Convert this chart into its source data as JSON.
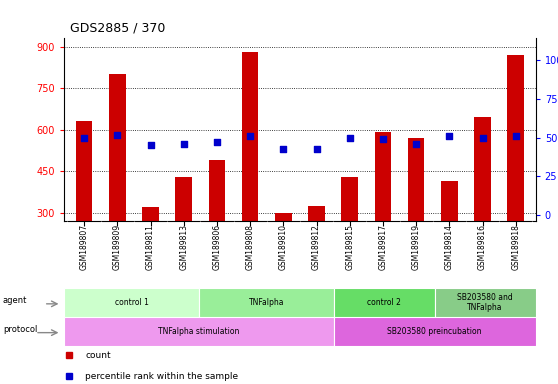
{
  "title": "GDS2885 / 370",
  "samples": [
    "GSM189807",
    "GSM189809",
    "GSM189811",
    "GSM189813",
    "GSM189806",
    "GSM189808",
    "GSM189810",
    "GSM189812",
    "GSM189815",
    "GSM189817",
    "GSM189819",
    "GSM189814",
    "GSM189816",
    "GSM189818"
  ],
  "counts": [
    630,
    800,
    320,
    430,
    490,
    880,
    300,
    325,
    430,
    590,
    570,
    415,
    645,
    870
  ],
  "percentiles": [
    50,
    52,
    45,
    46,
    47,
    51,
    43,
    43,
    50,
    49,
    46,
    51,
    50,
    51
  ],
  "percentile_scale": [
    0,
    25,
    50,
    75,
    100
  ],
  "count_scale": [
    300,
    450,
    600,
    750,
    900
  ],
  "ylim_count": [
    270,
    930
  ],
  "ylim_pct": [
    -3.6,
    114
  ],
  "bar_color": "#cc0000",
  "dot_color": "#0000cc",
  "agent_groups": [
    {
      "label": "control 1",
      "start": 0,
      "end": 4,
      "color": "#ccffcc"
    },
    {
      "label": "TNFalpha",
      "start": 4,
      "end": 8,
      "color": "#99ee99"
    },
    {
      "label": "control 2",
      "start": 8,
      "end": 11,
      "color": "#66dd66"
    },
    {
      "label": "SB203580 and\nTNFalpha",
      "start": 11,
      "end": 14,
      "color": "#88cc88"
    }
  ],
  "protocol_groups": [
    {
      "label": "TNFalpha stimulation",
      "start": 0,
      "end": 8,
      "color": "#ee99ee"
    },
    {
      "label": "SB203580 preincubation",
      "start": 8,
      "end": 14,
      "color": "#dd66dd"
    }
  ],
  "agent_label": "agent",
  "protocol_label": "protocol",
  "legend_count_label": "count",
  "legend_pct_label": "percentile rank within the sample",
  "bar_width": 0.5,
  "bg_color": "#d8d8d8",
  "count_min": 270
}
